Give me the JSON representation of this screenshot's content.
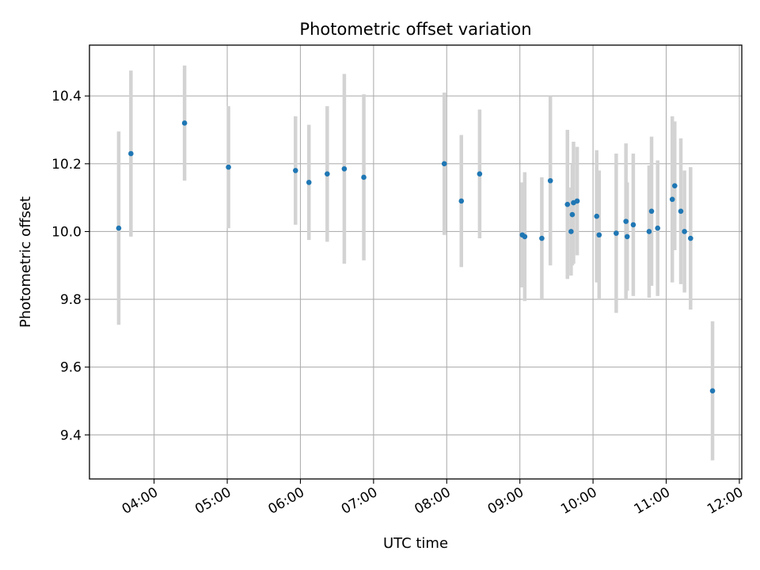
{
  "chart_data": {
    "type": "scatter",
    "title": "Photometric offset variation",
    "xlabel": "UTC time",
    "ylabel": "Photometric offset",
    "grid": true,
    "xlim": [
      "03:07",
      "12:02"
    ],
    "ylim": [
      9.27,
      10.55
    ],
    "x_ticks": [
      "04:00",
      "05:00",
      "06:00",
      "07:00",
      "08:00",
      "09:00",
      "10:00",
      "11:00",
      "12:00"
    ],
    "y_ticks": [
      "9.4",
      "9.6",
      "9.8",
      "10.0",
      "10.2",
      "10.4"
    ],
    "colors": {
      "point": "#1f77b4",
      "errorbar": "#d3d3d3",
      "grid": "#b0b0b0"
    },
    "points": [
      {
        "x": "03:31",
        "y": 10.01,
        "err": 0.285
      },
      {
        "x": "03:41",
        "y": 10.23,
        "err": 0.245
      },
      {
        "x": "04:25",
        "y": 10.32,
        "err": 0.17
      },
      {
        "x": "05:01",
        "y": 10.19,
        "err": 0.18
      },
      {
        "x": "05:56",
        "y": 10.18,
        "err": 0.16
      },
      {
        "x": "06:07",
        "y": 10.145,
        "err": 0.17
      },
      {
        "x": "06:22",
        "y": 10.17,
        "err": 0.2
      },
      {
        "x": "06:36",
        "y": 10.185,
        "err": 0.28
      },
      {
        "x": "06:52",
        "y": 10.16,
        "err": 0.245
      },
      {
        "x": "07:58",
        "y": 10.2,
        "err": 0.21
      },
      {
        "x": "08:12",
        "y": 10.09,
        "err": 0.195
      },
      {
        "x": "08:27",
        "y": 10.17,
        "err": 0.19
      },
      {
        "x": "09:02",
        "y": 9.99,
        "err": 0.155
      },
      {
        "x": "09:04",
        "y": 9.985,
        "err": 0.19
      },
      {
        "x": "09:18",
        "y": 9.98,
        "err": 0.18
      },
      {
        "x": "09:25",
        "y": 10.15,
        "err": 0.25
      },
      {
        "x": "09:39",
        "y": 10.08,
        "err": 0.22
      },
      {
        "x": "09:42",
        "y": 10.0,
        "err": 0.13
      },
      {
        "x": "09:43",
        "y": 10.05,
        "err": 0.15
      },
      {
        "x": "09:44",
        "y": 10.085,
        "err": 0.18
      },
      {
        "x": "09:47",
        "y": 10.09,
        "err": 0.16
      },
      {
        "x": "10:03",
        "y": 10.045,
        "err": 0.195
      },
      {
        "x": "10:05",
        "y": 9.99,
        "err": 0.19
      },
      {
        "x": "10:19",
        "y": 9.995,
        "err": 0.235
      },
      {
        "x": "10:27",
        "y": 10.03,
        "err": 0.23
      },
      {
        "x": "10:28",
        "y": 9.985,
        "err": 0.16
      },
      {
        "x": "10:33",
        "y": 10.02,
        "err": 0.21
      },
      {
        "x": "10:46",
        "y": 10.0,
        "err": 0.195
      },
      {
        "x": "10:48",
        "y": 10.06,
        "err": 0.22
      },
      {
        "x": "10:53",
        "y": 10.01,
        "err": 0.2
      },
      {
        "x": "11:05",
        "y": 10.095,
        "err": 0.245
      },
      {
        "x": "11:07",
        "y": 10.135,
        "err": 0.19
      },
      {
        "x": "11:12",
        "y": 10.06,
        "err": 0.215
      },
      {
        "x": "11:15",
        "y": 10.0,
        "err": 0.18
      },
      {
        "x": "11:20",
        "y": 9.98,
        "err": 0.21
      },
      {
        "x": "11:38",
        "y": 9.53,
        "err": 0.205
      }
    ]
  }
}
